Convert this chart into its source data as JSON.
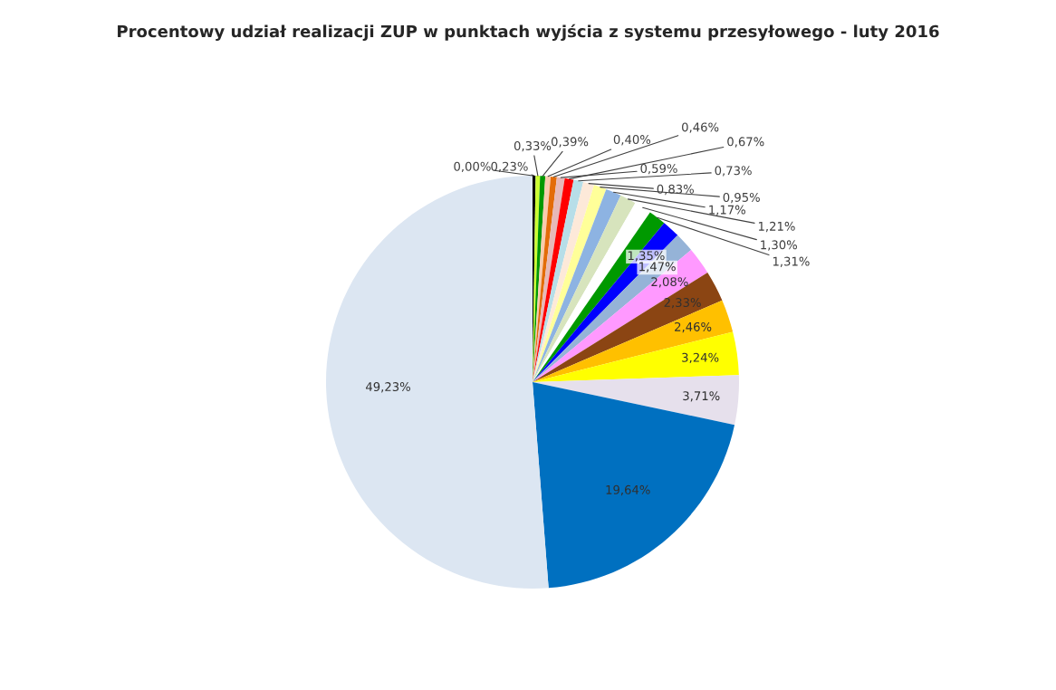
{
  "chart_data": {
    "type": "pie",
    "title": "Procentowy udział realizacji ZUP w punktach wyjścia z systemu przesyłowego - luty 2016",
    "categories": [
      null,
      null,
      null,
      null,
      null,
      null,
      null,
      null,
      null,
      null,
      null,
      null,
      null,
      null,
      null,
      null,
      null,
      null,
      null,
      null,
      null,
      null,
      null,
      null
    ],
    "values": [
      0.0,
      0.23,
      0.33,
      0.39,
      0.4,
      0.46,
      0.59,
      0.67,
      0.73,
      0.83,
      0.95,
      1.17,
      1.21,
      1.3,
      1.31,
      1.35,
      1.47,
      2.08,
      2.33,
      2.46,
      3.24,
      3.71,
      19.64,
      49.23
    ],
    "value_labels": [
      "0,00%",
      "0,23%",
      "0,33%",
      "0,39%",
      "0,40%",
      "0,46%",
      "0,59%",
      "0,67%",
      "0,73%",
      "0,83%",
      "0,95%",
      "1,17%",
      "1,21%",
      "1,30%",
      "1,31%",
      "1,35%",
      "1,47%",
      "2,08%",
      "2,33%",
      "2,46%",
      "3,24%",
      "3,71%",
      "19,64%",
      "49,23%"
    ],
    "colors": [
      "#8c7b6b",
      "#000000",
      "#ccff33",
      "#009900",
      "#f8cbad",
      "#e36c09",
      "#e6b9b8",
      "#ff0000",
      "#b7dee8",
      "#fde9d9",
      "#ffff99",
      "#8db3e2",
      "#d7e4bd",
      "#ffffff",
      "#009900",
      "#0000ff",
      "#95b3d7",
      "#ff99ff",
      "#8b4513",
      "#ffc000",
      "#ffff00",
      "#e6e0ec",
      "#0070c0",
      "#dce6f2"
    ],
    "legend": false
  }
}
